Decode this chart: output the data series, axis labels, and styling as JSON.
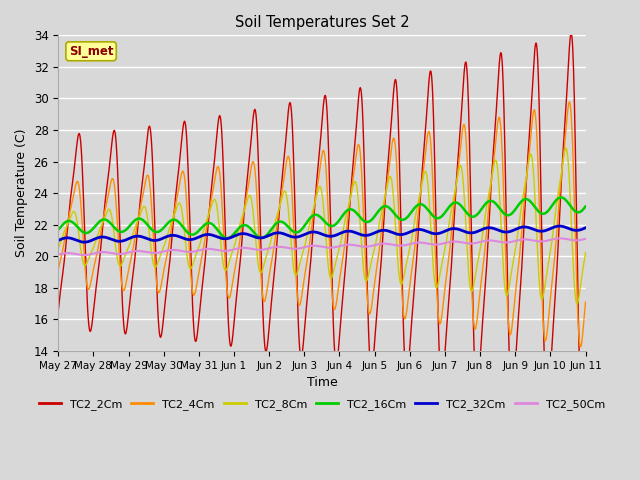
{
  "title": "Soil Temperatures Set 2",
  "xlabel": "Time",
  "ylabel": "Soil Temperature (C)",
  "ylim": [
    14,
    34
  ],
  "yticks": [
    14,
    16,
    18,
    20,
    22,
    24,
    26,
    28,
    30,
    32,
    34
  ],
  "plot_bg_color": "#d8d8d8",
  "fig_bg_color": "#d8d8d8",
  "legend_labels": [
    "TC2_2Cm",
    "TC2_4Cm",
    "TC2_8Cm",
    "TC2_16Cm",
    "TC2_32Cm",
    "TC2_50Cm"
  ],
  "legend_colors": [
    "#cc0000",
    "#ff8c00",
    "#cccc00",
    "#00cc00",
    "#0000cc",
    "#dd88dd"
  ],
  "annotation_text": "SI_met",
  "annotation_color": "#8b0000",
  "annotation_bg": "#ffff99",
  "tick_labels": [
    "May 27",
    "May 28",
    "May 29",
    "May 30",
    "May 31",
    "Jun 1",
    "Jun 2",
    "Jun 3",
    "Jun 4",
    "Jun 5",
    "Jun 6",
    "Jun 7",
    "Jun 8",
    "Jun 9",
    "Jun 10",
    "Jun 11"
  ]
}
